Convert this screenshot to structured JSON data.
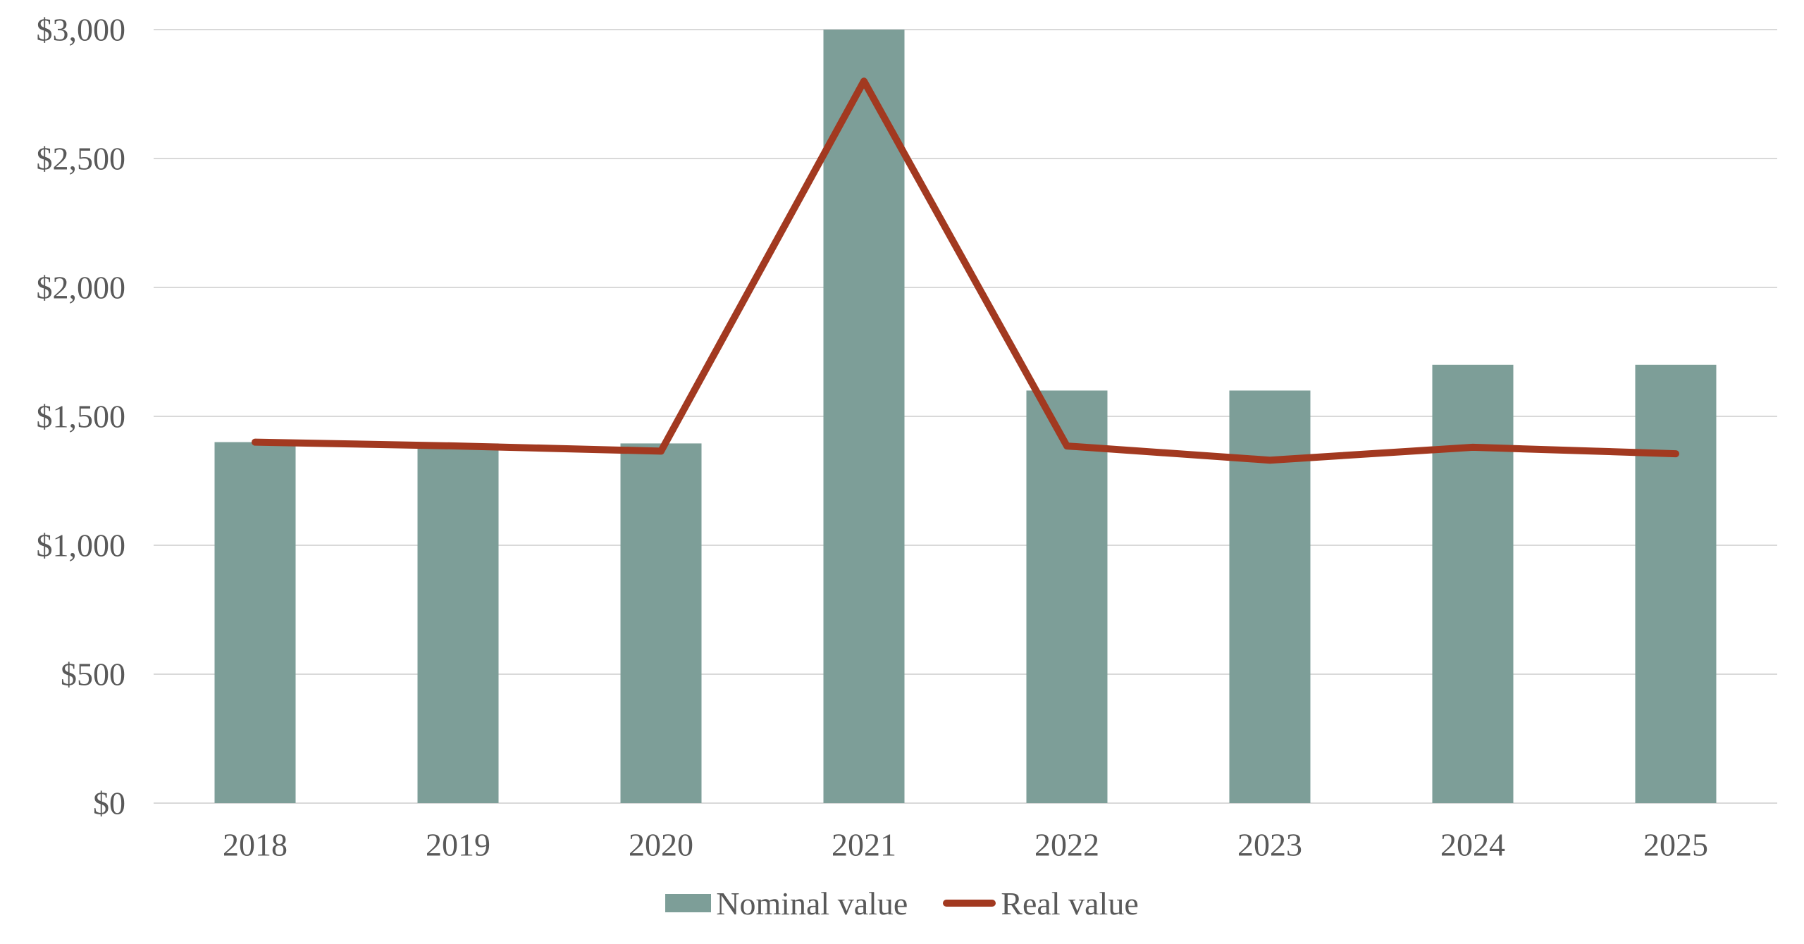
{
  "chart_data": {
    "type": "combo_bar_line",
    "categories": [
      "2018",
      "2019",
      "2020",
      "2021",
      "2022",
      "2023",
      "2024",
      "2025"
    ],
    "series": [
      {
        "name": "Nominal value",
        "type": "bar",
        "color": "#7D9E98",
        "values": [
          1400,
          1395,
          1395,
          3000,
          1600,
          1600,
          1700,
          1700
        ]
      },
      {
        "name": "Real value",
        "type": "line",
        "color": "#A23920",
        "values": [
          1400,
          1385,
          1365,
          2800,
          1385,
          1330,
          1380,
          1355
        ]
      }
    ],
    "title": "",
    "xlabel": "",
    "ylabel": "",
    "ylim": [
      0,
      3000
    ],
    "ytick_step": 500,
    "ytick_labels": [
      "$0",
      "$500",
      "$1,000",
      "$1,500",
      "$2,000",
      "$2,500",
      "$3,000"
    ],
    "grid": true,
    "legend_position": "bottom",
    "axis_text_color": "#595959",
    "gridline_color": "#D9D9D9",
    "background_color": "#FFFFFF"
  }
}
